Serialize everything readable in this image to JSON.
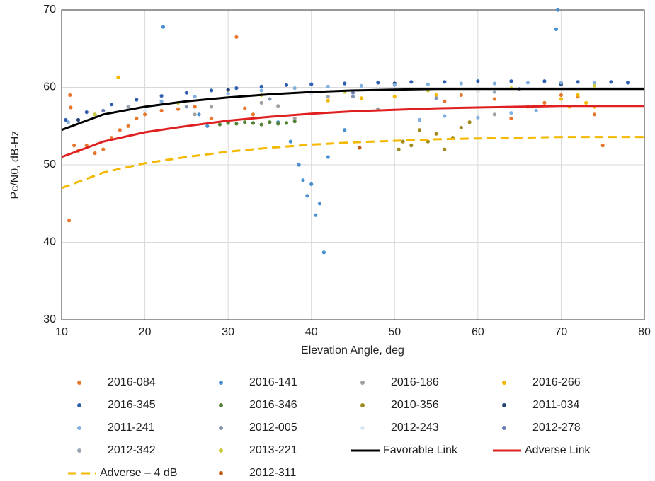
{
  "chart_data": {
    "type": "scatter",
    "x_label": "Elevation Angle, deg",
    "y_label": "Pc/N0, dB-Hz",
    "xlim": [
      10,
      80
    ],
    "xticks": [
      10,
      20,
      30,
      40,
      50,
      60,
      70,
      80
    ],
    "ylim": [
      30,
      70
    ],
    "yticks": [
      30,
      40,
      50,
      60,
      70
    ],
    "grid": true,
    "legend": "bottom",
    "series": [
      {
        "name": "2016-084",
        "color": "#e8772e",
        "kind": "scatter",
        "x": [
          10.9,
          11,
          11.1,
          11.5,
          12,
          13,
          14,
          15,
          16,
          17,
          18,
          19,
          20,
          22,
          24,
          26,
          28,
          30,
          31,
          32,
          33,
          56,
          58,
          60,
          62,
          64,
          66,
          68,
          70,
          72,
          74,
          75
        ],
        "values": [
          42.8,
          59,
          57.4,
          52.5,
          51.8,
          52.5,
          51.5,
          52,
          53.5,
          54.5,
          55,
          56,
          56.5,
          57,
          57.2,
          57.5,
          56,
          55.5,
          66.5,
          57.3,
          56.5,
          58.2,
          59,
          59.5,
          58.5,
          56,
          57.5,
          58,
          59,
          58.8,
          56.5,
          52.5
        ]
      },
      {
        "name": "2016-141",
        "color": "#4a90d0",
        "kind": "scatter",
        "x": [
          22.2,
          26.5,
          27.5,
          36,
          37.5,
          38.5,
          39,
          39.5,
          40,
          40.5,
          41,
          41.5,
          42,
          44,
          69.4,
          69.6
        ],
        "values": [
          67.8,
          56.5,
          55,
          55.5,
          53,
          50,
          48,
          46,
          47.5,
          43.5,
          45,
          38.7,
          51,
          54.5,
          67.5,
          70
        ]
      },
      {
        "name": "2016-186",
        "color": "#a0a0a0",
        "kind": "scatter",
        "x": [
          26,
          28,
          34,
          36,
          38,
          48,
          62
        ],
        "values": [
          56.5,
          57.5,
          58,
          57.6,
          56,
          57.2,
          56.5
        ]
      },
      {
        "name": "2016-266",
        "color": "#f5b800",
        "kind": "scatter",
        "x": [
          16.8,
          30,
          42,
          46,
          50,
          55,
          70,
          71,
          72,
          73,
          74
        ],
        "values": [
          61.3,
          59.6,
          58.3,
          58.6,
          58.8,
          59,
          58.5,
          57.5,
          59,
          58,
          57.5
        ]
      },
      {
        "name": "2016-345",
        "color": "#2f5fb0",
        "kind": "scatter",
        "x": [
          10.5,
          13,
          16,
          19,
          22,
          25,
          28,
          31,
          34,
          37,
          40,
          44,
          48,
          52,
          56,
          60,
          64,
          68,
          72,
          76,
          78
        ],
        "values": [
          55.8,
          56.8,
          57.8,
          58.4,
          58.9,
          59.3,
          59.6,
          59.9,
          60.1,
          60.3,
          60.4,
          60.5,
          60.6,
          60.7,
          60.7,
          60.8,
          60.8,
          60.8,
          60.7,
          60.7,
          60.6
        ]
      },
      {
        "name": "2016-346",
        "color": "#548235",
        "kind": "scatter",
        "x": [
          29,
          30,
          31,
          32,
          33,
          34,
          35,
          36,
          37,
          38
        ],
        "values": [
          55.2,
          55.4,
          55.3,
          55.5,
          55.4,
          55.2,
          55.5,
          55.3,
          55.4,
          55.6
        ]
      },
      {
        "name": "2010-356",
        "color": "#a08a1e",
        "kind": "scatter",
        "x": [
          50.5,
          51,
          52,
          53,
          54,
          55,
          56,
          57,
          58,
          59
        ],
        "values": [
          52,
          53,
          52.5,
          54.5,
          53,
          54,
          52,
          53.5,
          54.8,
          55.5
        ]
      },
      {
        "name": "2011-034",
        "color": "#264478",
        "kind": "scatter",
        "x": [
          12,
          30,
          50,
          70
        ],
        "values": [
          55.8,
          59.7,
          60.5,
          60.4
        ]
      },
      {
        "name": "2011-241",
        "color": "#7fb0e0",
        "kind": "scatter",
        "x": [
          10.8,
          14,
          18,
          22,
          26,
          30,
          34,
          38,
          42,
          46,
          50,
          53,
          54,
          56,
          58,
          60,
          62,
          64,
          66,
          67,
          70,
          74
        ],
        "values": [
          55.5,
          56.5,
          57.5,
          58.2,
          58.8,
          59.2,
          59.6,
          59.9,
          60.1,
          60.2,
          60.3,
          55.8,
          60.4,
          56.3,
          60.5,
          56.1,
          60.5,
          56.7,
          60.6,
          57,
          60.6,
          60.6
        ]
      },
      {
        "name": "2012-005",
        "color": "#8497b0",
        "kind": "scatter",
        "x": [
          25,
          35,
          45,
          55
        ],
        "values": [
          57.5,
          58.5,
          58.8,
          58.6
        ]
      },
      {
        "name": "2012-243",
        "color": "#dde8f5",
        "kind": "scatter",
        "x": [
          20,
          40,
          60
        ],
        "values": [
          57,
          59.2,
          59.5
        ]
      },
      {
        "name": "2012-278",
        "color": "#6b7fb5",
        "kind": "scatter",
        "x": [
          15,
          45,
          65
        ],
        "values": [
          57,
          59.3,
          59.8
        ]
      },
      {
        "name": "2012-342",
        "color": "#9aa5b5",
        "kind": "scatter",
        "x": [
          18,
          42,
          62
        ],
        "values": [
          57.5,
          58.8,
          59.4
        ]
      },
      {
        "name": "2013-221",
        "color": "#c9c93a",
        "kind": "scatter",
        "x": [
          14,
          24,
          34,
          44,
          54,
          64,
          74
        ],
        "values": [
          56.5,
          58,
          59,
          59.4,
          59.6,
          59.9,
          60.2
        ]
      },
      {
        "name": "Favorable Link",
        "color": "#000000",
        "kind": "line",
        "x": [
          10,
          15,
          20,
          25,
          30,
          35,
          40,
          45,
          50,
          55,
          60,
          65,
          70,
          75,
          80
        ],
        "values": [
          54.5,
          56.5,
          57.5,
          58.2,
          58.7,
          59.1,
          59.4,
          59.6,
          59.7,
          59.8,
          59.8,
          59.8,
          59.8,
          59.8,
          59.8
        ]
      },
      {
        "name": "Adverse Link",
        "color": "#e02020",
        "kind": "line",
        "x": [
          10,
          15,
          20,
          25,
          30,
          35,
          40,
          45,
          50,
          55,
          60,
          65,
          70,
          75,
          80
        ],
        "values": [
          51,
          53,
          54.2,
          55,
          55.7,
          56.2,
          56.6,
          56.9,
          57.1,
          57.3,
          57.4,
          57.5,
          57.6,
          57.6,
          57.6
        ]
      },
      {
        "name": "Adverse – 4 dB",
        "color": "#f5b800",
        "kind": "dashed-line",
        "x": [
          10,
          15,
          20,
          25,
          30,
          35,
          40,
          45,
          50,
          55,
          60,
          65,
          70,
          75,
          80
        ],
        "values": [
          47,
          49,
          50.2,
          51,
          51.7,
          52.2,
          52.6,
          52.9,
          53.1,
          53.3,
          53.4,
          53.5,
          53.6,
          53.6,
          53.6
        ]
      },
      {
        "name": "2012-311",
        "color": "#c55a11",
        "kind": "scatter",
        "x": [
          45.8
        ],
        "values": [
          52.2
        ]
      }
    ]
  }
}
